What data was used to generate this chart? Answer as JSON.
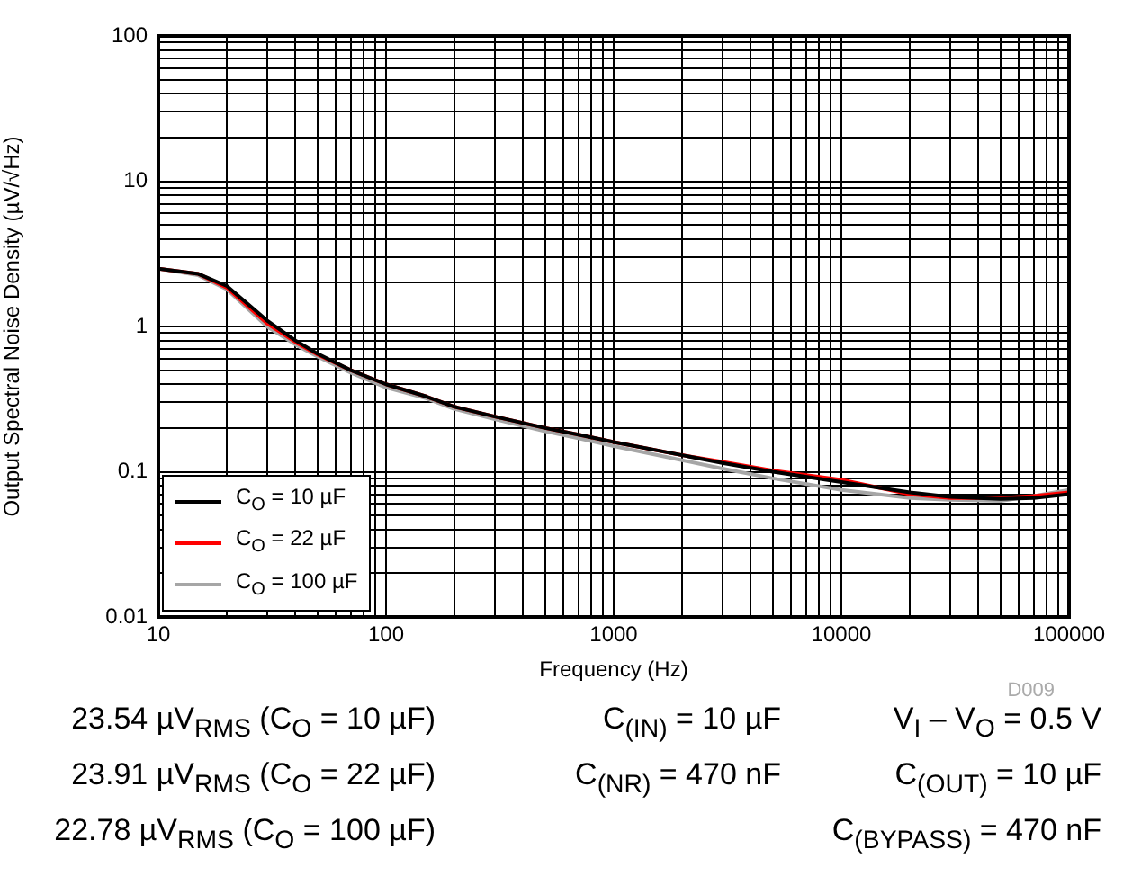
{
  "chart_data": {
    "type": "line",
    "xlabel": "Frequency (Hz)",
    "ylabel": "Output Spectral Noise Density (µV/√Hz)",
    "log": "xy",
    "grid": true,
    "legend": "bottom left",
    "marker": "none",
    "line_style": "solid",
    "x": [
      10,
      15,
      20,
      30,
      40,
      50,
      70,
      100,
      150,
      200,
      300,
      500,
      700,
      1000,
      2000,
      3000,
      5000,
      10000,
      20000,
      30000,
      50000,
      70000,
      100000
    ],
    "xlim": [
      10,
      100000
    ],
    "xticks": [
      10,
      100,
      1000,
      10000,
      100000
    ],
    "ylim": [
      0.01,
      100
    ],
    "yticks": [
      0.01,
      0.1,
      1,
      10,
      100
    ],
    "series": [
      {
        "name": "C$_{O}$ = 10 µF",
        "color": "#000000",
        "values": [
          2.5,
          2.3,
          1.9,
          1.1,
          0.8,
          0.65,
          0.5,
          0.4,
          0.33,
          0.28,
          0.24,
          0.2,
          0.18,
          0.16,
          0.13,
          0.115,
          0.1,
          0.085,
          0.072,
          0.067,
          0.065,
          0.066,
          0.07
        ]
      },
      {
        "name": "C$_{O}$ = 22 µF",
        "color": "#ff0000",
        "values": [
          2.5,
          2.3,
          1.85,
          1.05,
          0.78,
          0.64,
          0.5,
          0.4,
          0.33,
          0.28,
          0.24,
          0.2,
          0.18,
          0.16,
          0.13,
          0.117,
          0.102,
          0.088,
          0.07,
          0.066,
          0.066,
          0.068,
          0.072
        ]
      },
      {
        "name": "C$_{O}$ = 100 µF",
        "color": "#a6a6a6",
        "values": [
          2.5,
          2.25,
          1.8,
          1.0,
          0.75,
          0.62,
          0.48,
          0.38,
          0.32,
          0.27,
          0.23,
          0.19,
          0.17,
          0.15,
          0.12,
          0.105,
          0.09,
          0.075,
          0.066,
          0.064,
          0.063,
          0.068,
          0.075
        ]
      }
    ],
    "annotations": [
      "D009",
      "23.54 µV$_{RMS}$ (C$_{O}$ = 10 µF)",
      "23.91 µV$_{RMS}$ (C$_{O}$ = 22 µF)",
      "22.78 µV$_{RMS}$ (C$_{O}$ = 100 µF)",
      "C$_{(IN)}$ = 10 µF",
      "C$_{(NR)}$ = 470 nF",
      "V$_{I}$ – V$_{O}$ = 0.5 V",
      "C$_{(OUT)}$ = 10 µF",
      "C$_{(BYPASS)}$ = 470 nF"
    ]
  }
}
